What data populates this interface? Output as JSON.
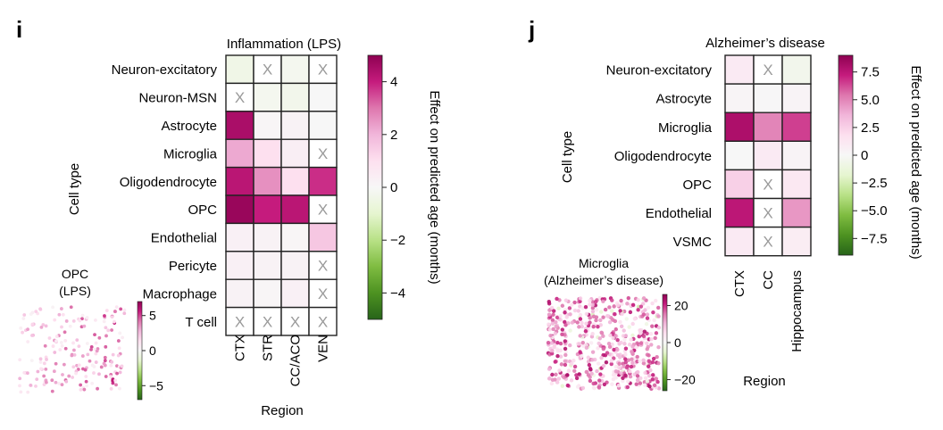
{
  "chart_data": [
    {
      "panel_label": "i",
      "type": "heatmap",
      "title": "Inflammation (LPS)",
      "xlabel": "Region",
      "ylabel": "Cell type",
      "x_categories": [
        "CTX",
        "STR",
        "CC/ACO",
        "VEN"
      ],
      "y_categories": [
        "Neuron-excitatory",
        "Neuron-MSN",
        "Astrocyte",
        "Microglia",
        "Oligodendrocyte",
        "OPC",
        "Endothelial",
        "Pericyte",
        "Macrophage",
        "T cell"
      ],
      "values": [
        [
          -0.4,
          null,
          -0.2,
          null
        ],
        [
          null,
          -0.2,
          -0.3,
          0.0
        ],
        [
          4.5,
          0.1,
          0.2,
          0.0
        ],
        [
          2.2,
          1.0,
          0.4,
          null
        ],
        [
          4.2,
          2.6,
          1.0,
          3.8
        ],
        [
          4.8,
          4.0,
          4.2,
          null
        ],
        [
          0.3,
          0.2,
          0.1,
          1.6
        ],
        [
          0.3,
          0.2,
          0.2,
          null
        ],
        [
          0.2,
          0.1,
          0.3,
          null
        ],
        [
          null,
          null,
          null,
          null
        ]
      ],
      "missing_marker": "X",
      "colorbar": {
        "label": "Effect on predicted age (months)",
        "min": -5,
        "max": 5,
        "ticks": [
          4,
          2,
          0,
          -2,
          -4
        ],
        "tick_labels": [
          "4",
          "2",
          "0",
          "−2",
          "−4"
        ]
      },
      "inset": {
        "title": "OPC\n(LPS)",
        "title_lines": [
          "OPC",
          "(LPS)"
        ],
        "type": "scatter",
        "colorbar_min": -7,
        "colorbar_max": 7,
        "colorbar_ticks": [
          5,
          0,
          -5
        ],
        "colorbar_tick_labels": [
          "5",
          "0",
          "−5"
        ]
      }
    },
    {
      "panel_label": "j",
      "type": "heatmap",
      "title": "Alzheimer’s disease",
      "xlabel": "Region",
      "ylabel": "Cell type",
      "x_categories": [
        "CTX",
        "CC",
        "Hippocampus"
      ],
      "y_categories": [
        "Neuron-excitatory",
        "Astrocyte",
        "Microglia",
        "Oligodendrocyte",
        "OPC",
        "Endothelial",
        "VSMC"
      ],
      "values": [
        [
          1.0,
          null,
          -0.5
        ],
        [
          0.2,
          0.1,
          0.3
        ],
        [
          8.0,
          5.0,
          6.5
        ],
        [
          0.0,
          1.0,
          0.3
        ],
        [
          2.5,
          null,
          1.2
        ],
        [
          7.5,
          null,
          4.5
        ],
        [
          1.0,
          null,
          0.8
        ]
      ],
      "missing_marker": "X",
      "colorbar": {
        "label": "Effect on predicted age (months)",
        "min": -9,
        "max": 9,
        "ticks": [
          7.5,
          5.0,
          2.5,
          0,
          -2.5,
          -5.0,
          -7.5
        ],
        "tick_labels": [
          "7.5",
          "5.0",
          "2.5",
          "0",
          "−2.5",
          "−5.0",
          "−7.5"
        ]
      },
      "inset": {
        "title": "Microglia\n(Alzheimer’s disease)",
        "title_lines": [
          "Microglia",
          "(Alzheimer’s disease)"
        ],
        "type": "scatter",
        "colorbar_min": -26,
        "colorbar_max": 26,
        "colorbar_ticks": [
          20,
          0,
          -20
        ],
        "colorbar_tick_labels": [
          "20",
          "0",
          "−20"
        ]
      }
    }
  ]
}
